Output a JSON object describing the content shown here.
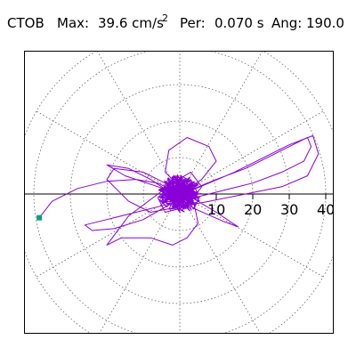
{
  "header": {
    "station": "CTOB",
    "max_label": "Max:",
    "max_value": "39.6 cm/s",
    "max_exponent": "2",
    "period_label": "Per:",
    "period_value": "0.070 s",
    "angle_label": "Ang:",
    "angle_value": "190.0"
  },
  "chart_data": {
    "type": "polar-particle-motion",
    "title": "",
    "radial_ticks": [
      10,
      20,
      30,
      40
    ],
    "radial_tick_labels": [
      "10",
      "20",
      "30",
      "40"
    ],
    "r_max": 40,
    "grid": true,
    "spoke_step_deg": 30,
    "max_direction_deg": 190,
    "colors": {
      "trace": "#8a00d8",
      "marker": "#0aa07a",
      "grid": "#666666",
      "axis": "#000000"
    },
    "trace": [
      [
        -38.5,
        -6.5
      ],
      [
        -35.0,
        -2.0
      ],
      [
        -28.0,
        1.5
      ],
      [
        -20.0,
        3.5
      ],
      [
        -12.0,
        4.0
      ],
      [
        -6.0,
        3.0
      ],
      [
        -2.0,
        1.0
      ],
      [
        0.0,
        0.0
      ],
      [
        4.0,
        1.5
      ],
      [
        10.0,
        4.0
      ],
      [
        18.0,
        7.0
      ],
      [
        26.0,
        11.0
      ],
      [
        32.0,
        14.0
      ],
      [
        35.0,
        15.5
      ],
      [
        36.0,
        13.0
      ],
      [
        34.0,
        9.0
      ],
      [
        28.0,
        6.0
      ],
      [
        20.0,
        3.0
      ],
      [
        12.0,
        1.0
      ],
      [
        4.0,
        -1.0
      ],
      [
        -4.0,
        -3.0
      ],
      [
        -12.0,
        -5.0
      ],
      [
        -20.0,
        -7.0
      ],
      [
        -26.0,
        -8.5
      ],
      [
        -24.0,
        -10.0
      ],
      [
        -18.0,
        -9.5
      ],
      [
        -10.0,
        -7.0
      ],
      [
        -3.0,
        -3.0
      ],
      [
        2.0,
        0.5
      ],
      [
        8.0,
        3.0
      ],
      [
        15.0,
        6.0
      ],
      [
        22.0,
        9.5
      ],
      [
        30.0,
        13.5
      ],
      [
        36.5,
        16.0
      ],
      [
        38.0,
        11.0
      ],
      [
        35.0,
        5.0
      ],
      [
        28.0,
        2.0
      ],
      [
        18.0,
        0.0
      ],
      [
        8.0,
        -2.0
      ],
      [
        0.0,
        -3.5
      ],
      [
        -8.0,
        -5.0
      ],
      [
        -14.0,
        -2.0
      ],
      [
        -20.0,
        4.0
      ],
      [
        -18.0,
        7.0
      ],
      [
        -10.0,
        6.0
      ],
      [
        -2.0,
        2.0
      ],
      [
        5.0,
        -2.0
      ],
      [
        10.0,
        -5.0
      ],
      [
        16.0,
        -9.0
      ],
      [
        12.0,
        -7.5
      ],
      [
        4.0,
        -4.0
      ],
      [
        -2.0,
        0.0
      ],
      [
        -8.0,
        4.0
      ],
      [
        -14.0,
        7.0
      ],
      [
        -20.0,
        8.0
      ],
      [
        -15.0,
        5.0
      ],
      [
        -6.0,
        2.0
      ],
      [
        0.0,
        0.0
      ],
      [
        6.0,
        4.0
      ],
      [
        10.0,
        9.0
      ],
      [
        8.0,
        13.0
      ],
      [
        2.0,
        15.5
      ],
      [
        -3.0,
        12.0
      ],
      [
        -4.0,
        6.0
      ],
      [
        0.0,
        2.0
      ],
      [
        4.0,
        -3.0
      ],
      [
        5.0,
        -8.0
      ],
      [
        2.0,
        -12.0
      ],
      [
        -2.0,
        -14.0
      ],
      [
        -8.0,
        -12.0
      ],
      [
        -16.0,
        -12.0
      ],
      [
        -20.0,
        -14.0
      ],
      [
        -14.0,
        -6.0
      ],
      [
        -6.0,
        0.0
      ],
      [
        -2.0,
        3.0
      ],
      [
        3.0,
        6.0
      ],
      [
        6.0,
        2.0
      ],
      [
        3.0,
        -2.0
      ],
      [
        -3.0,
        2.0
      ],
      [
        -6.0,
        -1.0
      ],
      [
        -4.0,
        -5.0
      ],
      [
        0.0,
        -4.0
      ],
      [
        4.0,
        -1.0
      ],
      [
        2.0,
        3.0
      ],
      [
        -1.0,
        5.0
      ],
      [
        -4.0,
        2.0
      ],
      [
        -2.0,
        -2.0
      ],
      [
        2.0,
        -3.0
      ],
      [
        5.0,
        0.0
      ],
      [
        3.0,
        4.0
      ],
      [
        0.0,
        1.0
      ]
    ]
  }
}
